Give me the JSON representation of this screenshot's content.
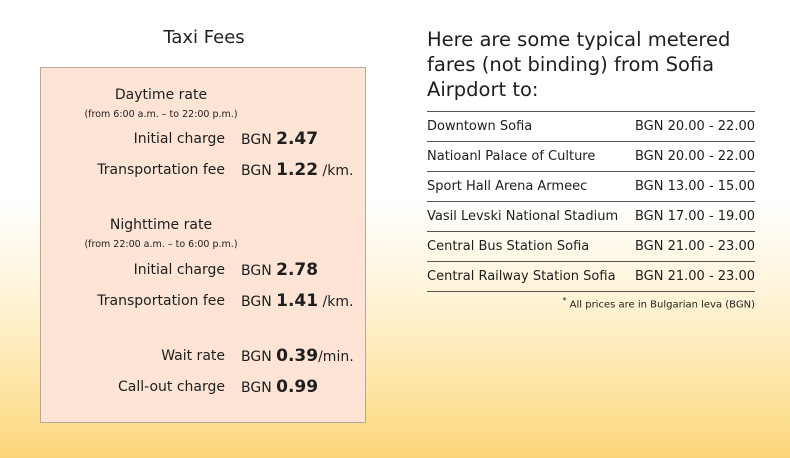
{
  "left": {
    "title": "Taxi Fees",
    "daytime": {
      "title": "Daytime rate",
      "note": "(from 6:00 a.m. – to 22:00 p.m.)",
      "initial": {
        "label": "Initial charge",
        "currency": "BGN",
        "amount": "2.47",
        "unit": ""
      },
      "transport": {
        "label": "Transportation fee",
        "currency": "BGN",
        "amount": "1.22",
        "unit": "/km."
      }
    },
    "nighttime": {
      "title": "Nighttime rate",
      "note": "(from 22:00 a.m. – to 6:00 p.m.)",
      "initial": {
        "label": "Initial charge",
        "currency": "BGN",
        "amount": "2.78",
        "unit": ""
      },
      "transport": {
        "label": "Transportation fee",
        "currency": "BGN",
        "amount": "1.41",
        "unit": "/km."
      }
    },
    "wait": {
      "label": "Wait rate",
      "currency": "BGN",
      "amount": "0.39",
      "unit": "/min."
    },
    "callout": {
      "label": "Call-out charge",
      "currency": "BGN",
      "amount": "0.99",
      "unit": ""
    }
  },
  "right": {
    "title": "Here are some typical metered fares (not binding) from Sofia Airpdort to:",
    "fares": [
      {
        "destination": "Downtown Sofia",
        "price": "BGN 20.00 - 22.00"
      },
      {
        "destination": "Natioanl Palace of Culture",
        "price": "BGN 20.00 - 22.00"
      },
      {
        "destination": "Sport Hall Arena Armeec",
        "price": "BGN 13.00 - 15.00"
      },
      {
        "destination": "Vasil Levski National Stadium",
        "price": "BGN 17.00 - 19.00"
      },
      {
        "destination": "Central Bus Station Sofia",
        "price": "BGN 21.00 - 23.00"
      },
      {
        "destination": "Central Railway Station Sofia",
        "price": "BGN 21.00 - 23.00"
      }
    ],
    "footnote_mark": "*",
    "footnote": "All prices are in Bulgarian leva (BGN)"
  }
}
